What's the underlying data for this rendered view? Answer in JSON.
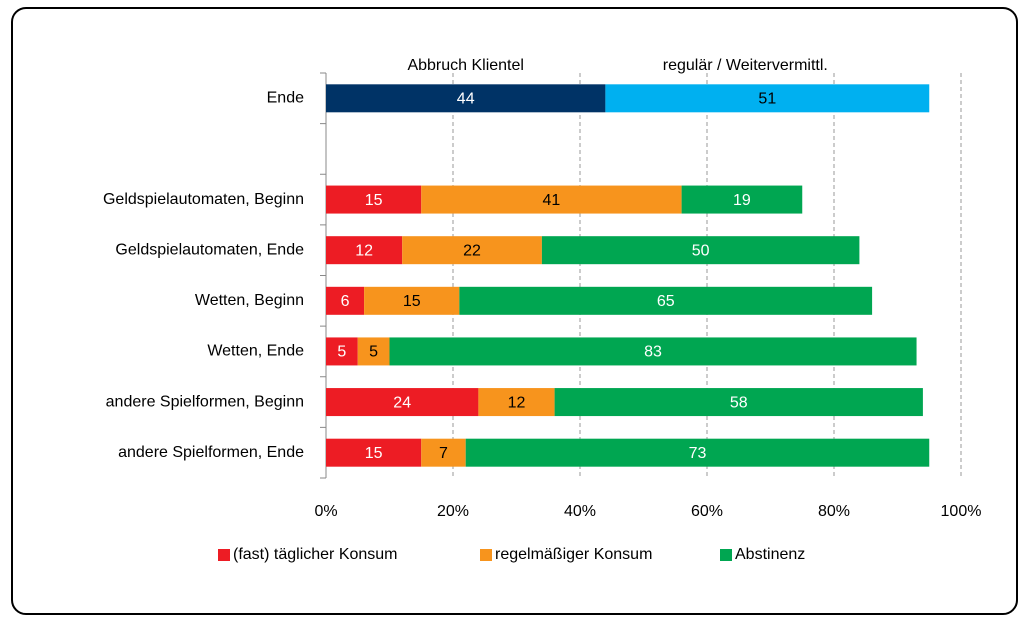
{
  "chart_data": {
    "type": "stacked_barh",
    "categories": [
      "Ende",
      null,
      "Geldspielautomaten, Beginn",
      "Geldspielautomaten, Ende",
      "Wetten, Beginn",
      "Wetten, Ende",
      "andere Spielformen, Beginn",
      "andere Spielformen, Ende"
    ],
    "series": [
      {
        "name": "Abbruch Klientel",
        "color": "#003366",
        "label_color": "#ffffff",
        "in_legend": false,
        "values": [
          44,
          null,
          null,
          null,
          null,
          null,
          null,
          null
        ]
      },
      {
        "name": "regulär  / Weitervermittl.",
        "color": "#00b0f0",
        "label_color": "#000000",
        "in_legend": false,
        "values": [
          51,
          null,
          null,
          null,
          null,
          null,
          null,
          null
        ]
      },
      {
        "name": "(fast) täglicher Konsum",
        "color": "#ed1c24",
        "label_color": "#ffffff",
        "in_legend": true,
        "values": [
          null,
          null,
          15,
          12,
          6,
          5,
          24,
          15
        ]
      },
      {
        "name": "regelmäßiger Konsum",
        "color": "#f7941d",
        "label_color": "#000000",
        "in_legend": true,
        "values": [
          null,
          null,
          41,
          22,
          15,
          5,
          12,
          7
        ]
      },
      {
        "name": "Abstinenz",
        "color": "#00a651",
        "label_color": "#ffffff",
        "in_legend": true,
        "values": [
          null,
          null,
          19,
          50,
          65,
          83,
          58,
          73
        ]
      }
    ],
    "xlim": [
      0,
      100
    ],
    "xticks": [
      {
        "value": 0,
        "label": "0%"
      },
      {
        "value": 20,
        "label": "20%"
      },
      {
        "value": 40,
        "label": "40%"
      },
      {
        "value": 60,
        "label": "60%"
      },
      {
        "value": 80,
        "label": "80%"
      },
      {
        "value": 100,
        "label": "100%"
      }
    ],
    "grid": true,
    "legend": "bottom"
  }
}
